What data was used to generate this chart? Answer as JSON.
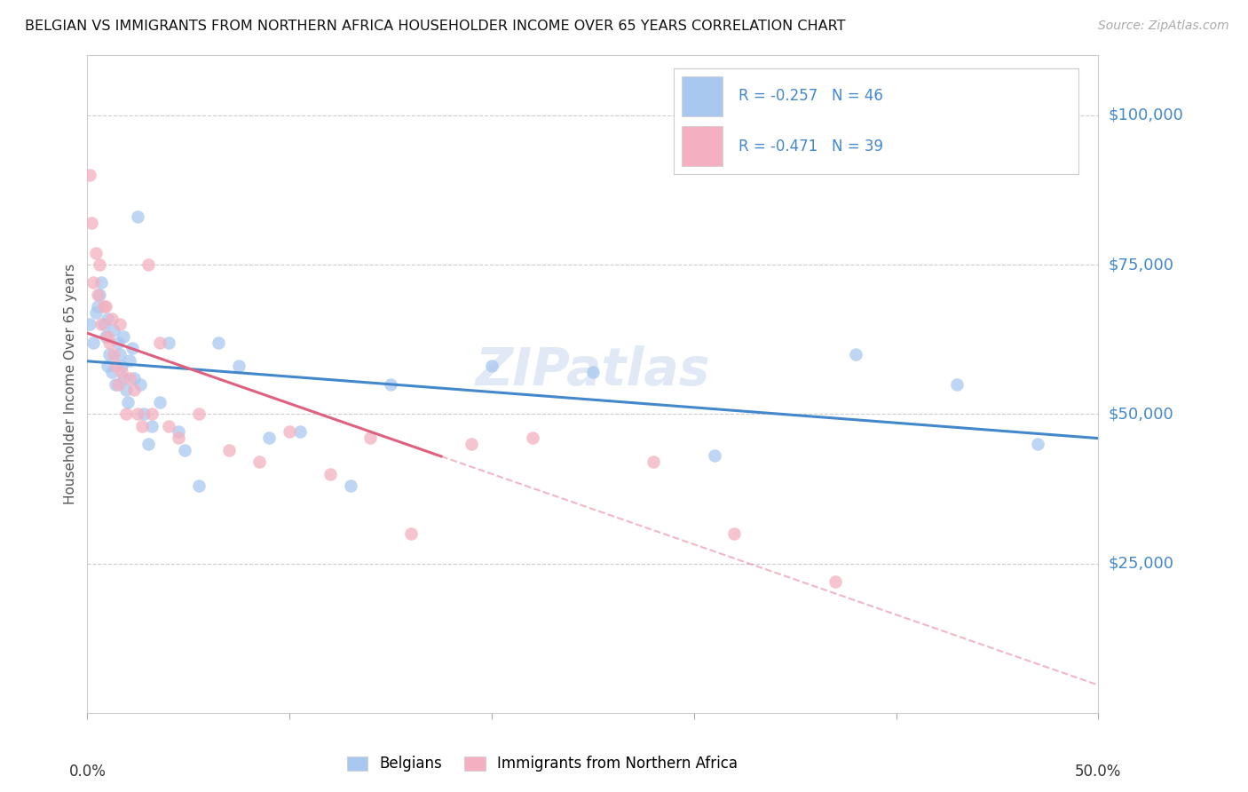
{
  "title": "BELGIAN VS IMMIGRANTS FROM NORTHERN AFRICA HOUSEHOLDER INCOME OVER 65 YEARS CORRELATION CHART",
  "source": "Source: ZipAtlas.com",
  "ylabel": "Householder Income Over 65 years",
  "ytick_labels": [
    "$25,000",
    "$50,000",
    "$75,000",
    "$100,000"
  ],
  "ytick_values": [
    25000,
    50000,
    75000,
    100000
  ],
  "ylim": [
    0,
    110000
  ],
  "xlim": [
    0.0,
    0.5
  ],
  "legend_belgians": "R = -0.257   N = 46",
  "legend_immigrants": "R = -0.471   N = 39",
  "legend_label_belgians": "Belgians",
  "legend_label_immigrants": "Immigrants from Northern Africa",
  "blue_scatter_color": "#a8c8f0",
  "pink_scatter_color": "#f4b0c0",
  "blue_line_color": "#4488cc",
  "pink_line_color": "#e06080",
  "watermark": "ZIPatlas",
  "belgians_x": [
    0.001,
    0.003,
    0.004,
    0.005,
    0.006,
    0.007,
    0.008,
    0.009,
    0.01,
    0.01,
    0.011,
    0.012,
    0.013,
    0.014,
    0.015,
    0.016,
    0.017,
    0.018,
    0.018,
    0.019,
    0.02,
    0.021,
    0.022,
    0.023,
    0.025,
    0.026,
    0.028,
    0.03,
    0.032,
    0.036,
    0.04,
    0.045,
    0.048,
    0.055,
    0.065,
    0.075,
    0.09,
    0.105,
    0.13,
    0.15,
    0.2,
    0.25,
    0.31,
    0.38,
    0.43,
    0.47
  ],
  "belgians_y": [
    65000,
    62000,
    67000,
    68000,
    70000,
    72000,
    65000,
    63000,
    66000,
    58000,
    60000,
    57000,
    64000,
    55000,
    62000,
    60000,
    58000,
    56000,
    63000,
    54000,
    52000,
    59000,
    61000,
    56000,
    83000,
    55000,
    50000,
    45000,
    48000,
    52000,
    62000,
    47000,
    44000,
    38000,
    62000,
    58000,
    46000,
    47000,
    38000,
    55000,
    58000,
    57000,
    43000,
    60000,
    55000,
    45000
  ],
  "immigrants_x": [
    0.001,
    0.002,
    0.003,
    0.004,
    0.005,
    0.006,
    0.007,
    0.008,
    0.009,
    0.01,
    0.011,
    0.012,
    0.013,
    0.014,
    0.015,
    0.016,
    0.017,
    0.019,
    0.021,
    0.023,
    0.025,
    0.027,
    0.03,
    0.032,
    0.036,
    0.04,
    0.045,
    0.055,
    0.07,
    0.085,
    0.1,
    0.12,
    0.14,
    0.16,
    0.19,
    0.22,
    0.28,
    0.32,
    0.37
  ],
  "immigrants_y": [
    90000,
    82000,
    72000,
    77000,
    70000,
    75000,
    65000,
    68000,
    68000,
    63000,
    62000,
    66000,
    60000,
    58000,
    55000,
    65000,
    57000,
    50000,
    56000,
    54000,
    50000,
    48000,
    75000,
    50000,
    62000,
    48000,
    46000,
    50000,
    44000,
    42000,
    47000,
    40000,
    46000,
    30000,
    45000,
    46000,
    42000,
    30000,
    22000
  ]
}
